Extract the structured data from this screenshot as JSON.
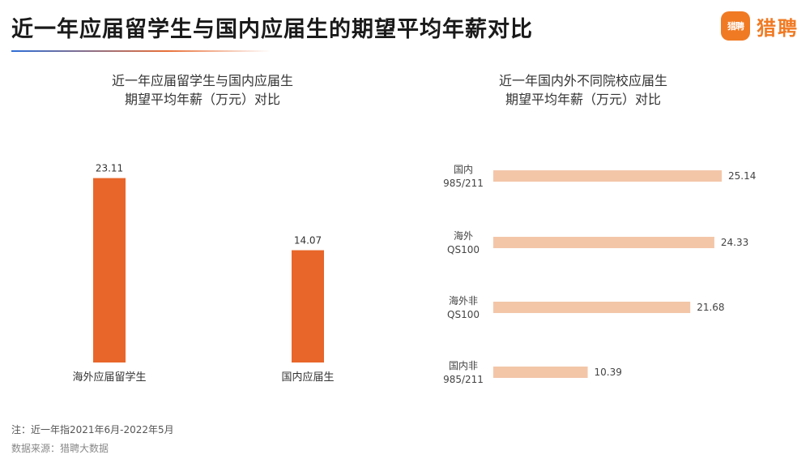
{
  "header": {
    "title": "近一年应届留学生与国内应届生的期望平均年薪对比",
    "logo_badge": "猎聘",
    "logo_text": "猎聘",
    "accent_color": "#f07a23"
  },
  "chart_data": [
    {
      "type": "bar",
      "title_line1": "近一年应届留学生与国内应届生",
      "title_line2": "期望平均年薪（万元）对比",
      "categories": [
        "海外应届留学生",
        "国内应届生"
      ],
      "values": [
        23.11,
        14.07
      ],
      "value_labels": [
        "23.11",
        "14.07"
      ],
      "ylim": [
        0,
        25
      ],
      "bar_color": "#e8662a",
      "grid": false,
      "legend": "none"
    },
    {
      "type": "bar",
      "orientation": "horizontal",
      "title_line1": "近一年国内外不同院校应届生",
      "title_line2": "期望平均年薪（万元）对比",
      "categories": [
        [
          "国内",
          "985/211"
        ],
        [
          "海外",
          "QS100"
        ],
        [
          "海外非",
          "QS100"
        ],
        [
          "国内非",
          "985/211"
        ]
      ],
      "values": [
        25.14,
        24.33,
        21.68,
        10.39
      ],
      "value_labels": [
        "25.14",
        "24.33",
        "21.68",
        "10.39"
      ],
      "xlim": [
        0,
        25.14
      ],
      "bar_color": "#f3c6a8",
      "grid": false,
      "legend": "none"
    }
  ],
  "footer": {
    "note": "注：近一年指2021年6月-2022年5月",
    "source": "数据来源：猎聘大数据"
  }
}
